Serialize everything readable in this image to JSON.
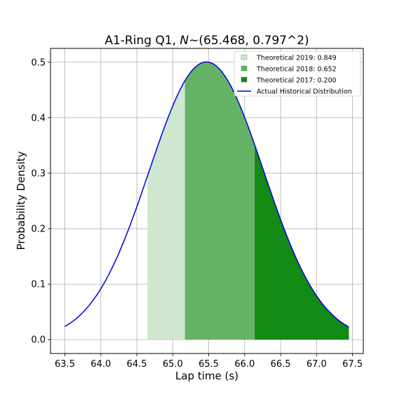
{
  "chart_data": {
    "type": "area",
    "title": "A1-Ring Q1, N∼(65.468, 0.797^2)",
    "title_parts": {
      "prefix": "A1-Ring Q1, ",
      "italic": "N",
      "suffix": "∼(65.468, 0.797^2)"
    },
    "xlabel": "Lap time (s)",
    "ylabel": "Probability Density",
    "xlim": [
      63.3,
      67.65
    ],
    "ylim": [
      -0.025,
      0.525
    ],
    "xticks": [
      63.5,
      64.0,
      64.5,
      65.0,
      65.5,
      66.0,
      66.5,
      67.0,
      67.5
    ],
    "xtick_labels": [
      "63.5",
      "64.0",
      "64.5",
      "65.0",
      "65.5",
      "66.0",
      "66.5",
      "67.0",
      "67.5"
    ],
    "yticks": [
      0.0,
      0.1,
      0.2,
      0.3,
      0.4,
      0.5
    ],
    "ytick_labels": [
      "0.0",
      "0.1",
      "0.2",
      "0.3",
      "0.4",
      "0.5"
    ],
    "grid": true,
    "legend_position": "top-right",
    "distribution": {
      "mu": 65.468,
      "sigma": 0.797,
      "x_min": 63.5,
      "x_max": 67.45
    },
    "series": [
      {
        "name": "Theoretical 2019: 0.849",
        "kind": "shaded",
        "x_from": 64.65,
        "x_to": 67.45,
        "color": "#cfe6cf"
      },
      {
        "name": "Theoretical 2018: 0.652",
        "kind": "shaded",
        "x_from": 65.17,
        "x_to": 67.45,
        "color": "#66b266"
      },
      {
        "name": "Theoretical 2017: 0.200",
        "kind": "shaded",
        "x_from": 66.14,
        "x_to": 67.45,
        "color": "#138a13"
      },
      {
        "name": "Actual Historical Distribution",
        "kind": "line",
        "x_from": 63.5,
        "x_to": 67.45,
        "color": "#0000dd"
      }
    ]
  }
}
